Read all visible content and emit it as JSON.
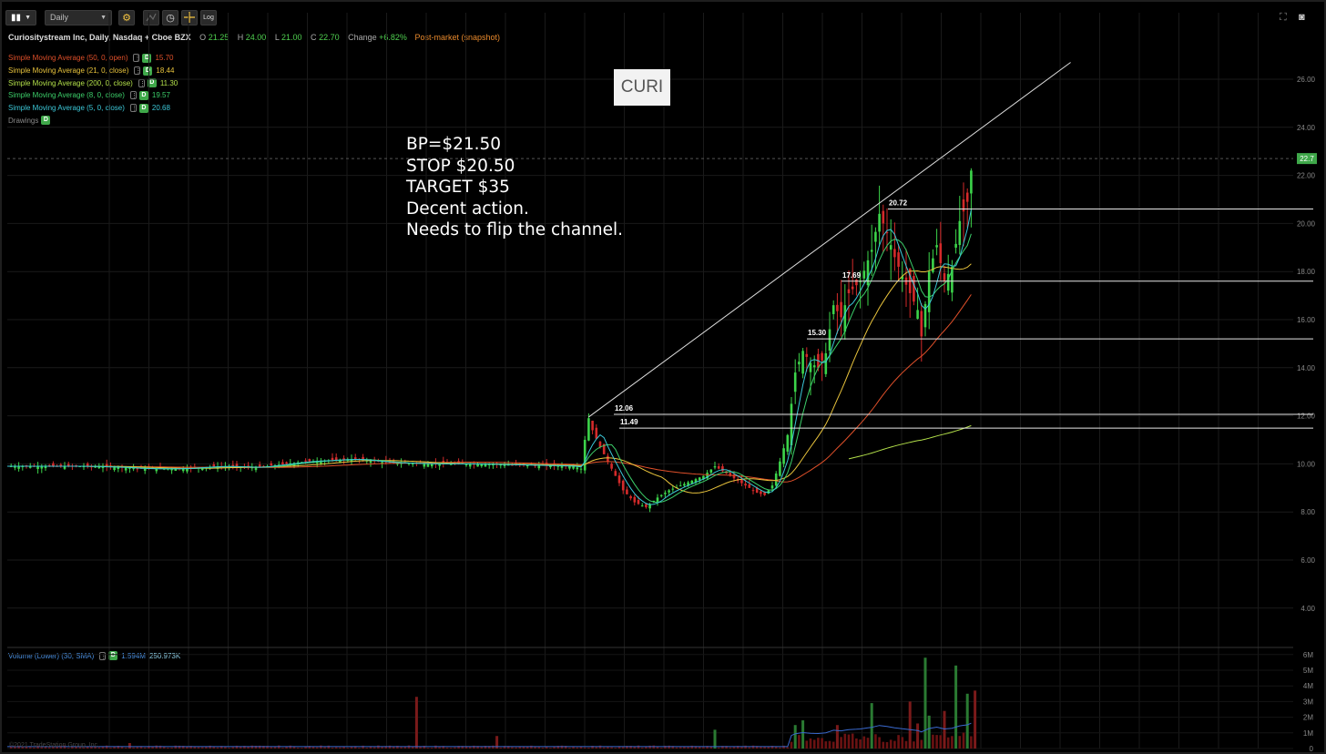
{
  "toolbar": {
    "chart_style_icon": "candlestick-icon",
    "interval": "Daily",
    "buttons": [
      "gear-icon",
      "draw-icon",
      "clock-icon",
      "crosshair-icon"
    ],
    "log_label": "Log"
  },
  "header": {
    "name": "Curiositystream Inc, Daily, Nasdaq + Cboe BZX",
    "open_label": "O",
    "open": "21.25",
    "high_label": "H",
    "high": "24.00",
    "low_label": "L",
    "low": "21.00",
    "close_label": "C",
    "close": "22.70",
    "change_label": "Change",
    "change": "+6.82%",
    "post_market": "Post-market (snapshot)"
  },
  "studies": [
    {
      "label": "Simple Moving Average (50, 0, open)",
      "value": "15.70",
      "color": "#e0502a"
    },
    {
      "label": "Simple Moving Average (21, 0, close)",
      "value": "18.44",
      "color": "#e8c33c"
    },
    {
      "label": "Simple Moving Average (200, 0, close)",
      "value": "11.30",
      "color": "#b3e04a"
    },
    {
      "label": "Simple Moving Average (8, 0, close)",
      "value": "19.57",
      "color": "#3ccf6a"
    },
    {
      "label": "Simple Moving Average (5, 0, close)",
      "value": "20.68",
      "color": "#3cc8d8"
    }
  ],
  "drawings_label": "Drawings",
  "volume_study": {
    "label": "Volume (Lower) (30, SMA)",
    "value1": "1.594M",
    "value2": "250.973K"
  },
  "symbol_tag": "CURI",
  "note_lines": [
    "BP=$21.50",
    "STOP $20.50",
    "TARGET $35",
    "Decent action.",
    "Needs to flip the channel."
  ],
  "watermark": "©2021 TradeStation Group, Inc.",
  "colors": {
    "up": "#3cd44a",
    "down": "#d42a2a",
    "price_tag": "#3fa84a"
  },
  "chart_data": [
    {
      "type": "candlestick",
      "interval": "Daily",
      "y_axis": {
        "ticks": [
          "26.00",
          "24.00",
          "22.00",
          "20.00",
          "18.00",
          "16.00",
          "14.00",
          "12.00",
          "10.00",
          "8.00",
          "6.00",
          "4.00"
        ],
        "range": [
          3.0,
          27.7
        ]
      },
      "last_price": {
        "value": 22.7,
        "label": "22.7"
      },
      "approx_close_path": [
        [
          0,
          9.9
        ],
        [
          10,
          9.9
        ],
        [
          20,
          9.9
        ],
        [
          30,
          9.85
        ],
        [
          35,
          9.8
        ],
        [
          40,
          9.8
        ],
        [
          45,
          9.8
        ],
        [
          55,
          9.9
        ],
        [
          65,
          9.85
        ],
        [
          78,
          10.1
        ],
        [
          90,
          10.2
        ],
        [
          100,
          10.05
        ],
        [
          110,
          10.0
        ],
        [
          120,
          10.0
        ],
        [
          135,
          9.95
        ],
        [
          148,
          9.9
        ],
        [
          150,
          9.8
        ],
        [
          151,
          11.0
        ],
        [
          152,
          11.9
        ],
        [
          153,
          11.4
        ],
        [
          155,
          10.7
        ],
        [
          158,
          9.8
        ],
        [
          161,
          8.9
        ],
        [
          164,
          8.4
        ],
        [
          167,
          8.2
        ],
        [
          170,
          8.6
        ],
        [
          173,
          8.9
        ],
        [
          176,
          9.1
        ],
        [
          179,
          9.3
        ],
        [
          182,
          9.5
        ],
        [
          185,
          9.9
        ],
        [
          188,
          9.6
        ],
        [
          191,
          9.3
        ],
        [
          194,
          9.0
        ],
        [
          196,
          8.8
        ],
        [
          198,
          8.7
        ],
        [
          200,
          9.1
        ],
        [
          202,
          10.1
        ],
        [
          204,
          11.2
        ],
        [
          206,
          13.8
        ],
        [
          208,
          14.7
        ],
        [
          210,
          14.2
        ],
        [
          212,
          14.0
        ],
        [
          214,
          14.6
        ],
        [
          216,
          16.6
        ],
        [
          218,
          16.1
        ],
        [
          220,
          17.1
        ],
        [
          223,
          17.6
        ],
        [
          226,
          18.9
        ],
        [
          228,
          20.4
        ],
        [
          230,
          19.6
        ],
        [
          232,
          18.6
        ],
        [
          234,
          17.8
        ],
        [
          236,
          17.1
        ],
        [
          238,
          16.4
        ],
        [
          239,
          15.3
        ],
        [
          241,
          18.0
        ],
        [
          243,
          19.1
        ],
        [
          245,
          17.6
        ],
        [
          247,
          18.2
        ],
        [
          249,
          20.1
        ],
        [
          251,
          20.9
        ],
        [
          252,
          22.2
        ]
      ],
      "annotations": [
        {
          "type": "hline",
          "price": 20.6,
          "label": "20.72"
        },
        {
          "type": "hline",
          "price": 17.6,
          "label": "17.69"
        },
        {
          "type": "hline",
          "price": 15.2,
          "label": "15.30"
        },
        {
          "type": "hline",
          "price": 12.06,
          "label": "12.06"
        },
        {
          "type": "hline",
          "price": 11.49,
          "label": "11.49"
        },
        {
          "type": "trendline",
          "from": [
            152,
            11.95
          ],
          "to": [
            278,
            26.7
          ]
        }
      ],
      "studies": [
        {
          "name": "Simple Moving Average (50, 0, open)",
          "last": 15.7,
          "color": "#e0502a"
        },
        {
          "name": "Simple Moving Average (21, 0, close)",
          "last": 18.44,
          "color": "#e8c33c"
        },
        {
          "name": "Simple Moving Average (200, 0, close)",
          "last": 11.3,
          "color": "#b3e04a"
        },
        {
          "name": "Simple Moving Average (8, 0, close)",
          "last": 19.57,
          "color": "#3ccf6a"
        },
        {
          "name": "Simple Moving Average (5, 0, close)",
          "last": 20.68,
          "color": "#3cc8d8"
        }
      ]
    },
    {
      "type": "bar",
      "title": "Volume (Lower) (30, SMA)",
      "y_axis": {
        "ticks": [
          "6M",
          "5M",
          "4M",
          "3M",
          "2M",
          "1M",
          "0"
        ],
        "range": [
          0,
          6.1
        ]
      },
      "volume_spikes_millions": [
        [
          32,
          0.35
        ],
        [
          107,
          3.3
        ],
        [
          128,
          0.8
        ],
        [
          185,
          1.2
        ],
        [
          206,
          1.5
        ],
        [
          208,
          1.8
        ],
        [
          217,
          1.5
        ],
        [
          226,
          2.9
        ],
        [
          236,
          3.0
        ],
        [
          238,
          1.6
        ],
        [
          240,
          5.8
        ],
        [
          241,
          2.1
        ],
        [
          245,
          2.4
        ],
        [
          248,
          5.3
        ],
        [
          251,
          3.5
        ],
        [
          253,
          3.7
        ]
      ]
    }
  ]
}
